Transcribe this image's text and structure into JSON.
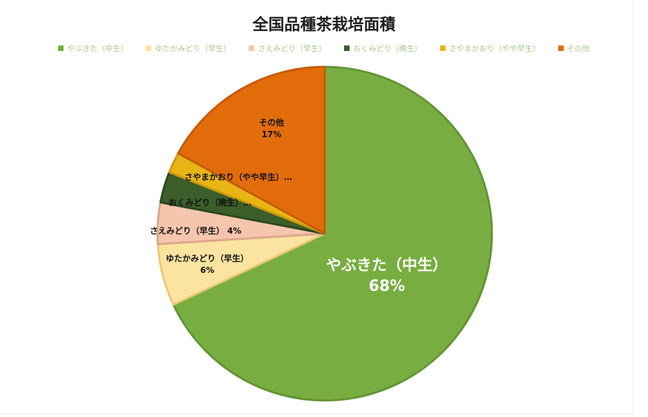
{
  "chart_data": {
    "type": "pie",
    "title": "全国品種茶栽培面積",
    "legend_position": "top",
    "slices": [
      {
        "name": "やぶきた（中生）",
        "value": 68,
        "label": "やぶきた（中生）",
        "pct_label": "68%",
        "color": "#78ad41",
        "stroke": "#629433"
      },
      {
        "name": "ゆたかみどり（早生）",
        "value": 6,
        "label": "ゆたかみどり（早生）",
        "pct_label": "6%",
        "color": "#fbe3a0",
        "stroke": "#e9c872"
      },
      {
        "name": "さえみどり（早生）",
        "value": 4,
        "label": "さえみどり（早生）",
        "pct_label": "4%",
        "color": "#f5c6ad",
        "stroke": "#dea58c"
      },
      {
        "name": "おくみどり（晩生）",
        "value": 3,
        "label": "おくみどり（晩生）…",
        "pct_label": "",
        "color": "#3b5e2a",
        "stroke": "#2b4820"
      },
      {
        "name": "さやまかおり（やや早生）",
        "value": 2,
        "label": "さやまかおり（やや早生）…",
        "pct_label": "",
        "color": "#e8b514",
        "stroke": "#c99a0c"
      },
      {
        "name": "その他",
        "value": 17,
        "label": "その他",
        "pct_label": "17%",
        "color": "#e36c0a",
        "stroke": "#c55a06"
      }
    ]
  }
}
